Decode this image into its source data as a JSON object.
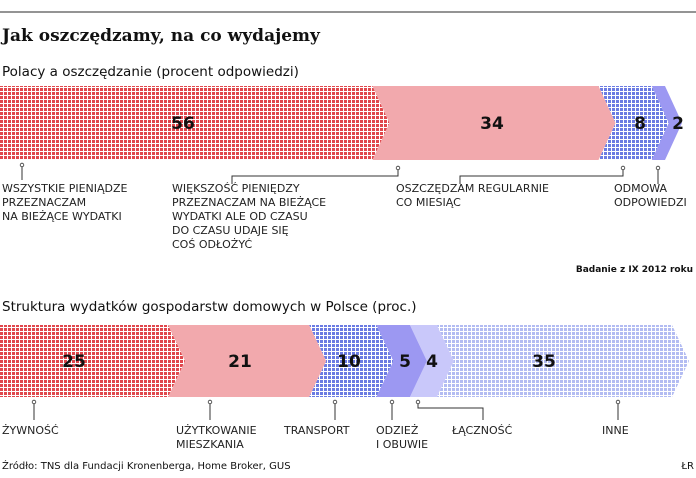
{
  "chart_data": [
    {
      "type": "bar",
      "stacked": true,
      "orientation": "horizontal",
      "title": "Jak oszczędzamy, na co wydajemy",
      "subtitle": "Polacy a oszczędzanie (procent odpowiedzi)",
      "categories": [
        [
          "WSZYSTKIE PIENIĄDZE",
          "PRZEZNACZAM",
          "NA BIEŻĄCE WYDATKI"
        ],
        [
          "WIĘKSZOŚĆ PIENIĘDZY",
          "PRZEZNACZAM NA BIEŻĄCE",
          "WYDATKI ALE OD CZASU",
          "DO CZASU UDAJE SIĘ",
          "COŚ ODŁOŻYĆ"
        ],
        [
          "OSZCZĘDZAM REGULARNIE",
          "CO MIESIĄC"
        ],
        [
          "ODMOWA",
          "ODPOWIEDZI"
        ]
      ],
      "values": [
        56,
        34,
        8,
        2
      ],
      "colors": [
        "#e0474c",
        "#f2a9ad",
        "#5a6ee0",
        "#9c98f2"
      ],
      "patterns": [
        "dots",
        "solid",
        "dots",
        "solid"
      ],
      "annotation": "Badanie z IX 2012 roku"
    },
    {
      "type": "bar",
      "stacked": true,
      "orientation": "horizontal",
      "subtitle": "Struktura wydatków gospodarstw domowych w Polsce (proc.)",
      "categories": [
        [
          "ŻYWNOŚĆ"
        ],
        [
          "UŻYTKOWANIE",
          "MIESZKANIA"
        ],
        [
          "TRANSPORT"
        ],
        [
          "ODZIEŻ",
          "I OBUWIE"
        ],
        [
          "ŁĄCZNOŚĆ"
        ],
        [
          "INNE"
        ]
      ],
      "values": [
        25,
        21,
        10,
        5,
        4,
        35
      ],
      "colors": [
        "#e0474c",
        "#f2a9ad",
        "#5a6ee0",
        "#9c98f2",
        "#c9c8fa",
        "#a9b4f0"
      ],
      "patterns": [
        "dots",
        "solid",
        "dots",
        "solid",
        "solid",
        "dots"
      ]
    }
  ],
  "source": "Źródło: TNS dla Fundacji Kronenberga, Home Broker, GUS",
  "credit": "ŁR"
}
